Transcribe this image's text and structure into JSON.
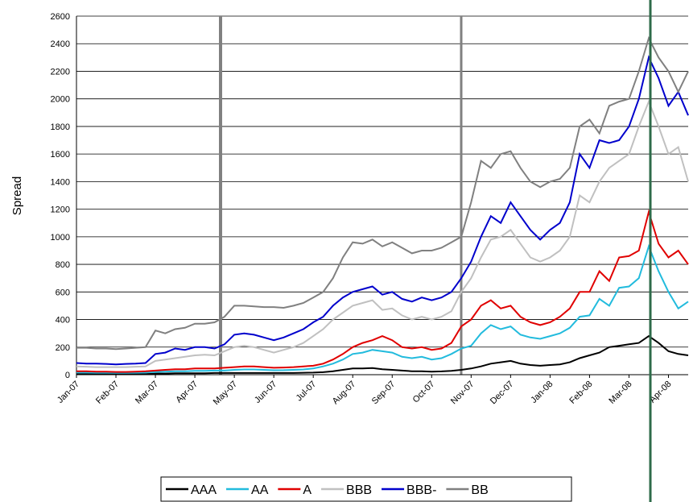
{
  "chart_data": {
    "type": "line",
    "ylabel": "Spread",
    "categories": [
      "Jan-07",
      null,
      null,
      null,
      "Feb-07",
      null,
      null,
      null,
      "Mar-07",
      null,
      null,
      null,
      "Apr-07",
      null,
      null,
      null,
      "May-07",
      null,
      null,
      null,
      "Jun-07",
      null,
      null,
      null,
      "Jul-07",
      null,
      null,
      null,
      "Aug-07",
      null,
      null,
      null,
      "Sep-07",
      null,
      null,
      null,
      "Oct-07",
      null,
      null,
      null,
      "Nov-07",
      null,
      null,
      null,
      "Dec-07",
      null,
      null,
      null,
      "Jan-08",
      null,
      null,
      null,
      "Feb-08",
      null,
      null,
      null,
      "Mar-08",
      null,
      null,
      null,
      "Apr-08",
      null,
      null
    ],
    "series": [
      {
        "name": "AAA",
        "color": "#000000",
        "values": [
          5,
          5,
          5,
          5,
          5,
          5,
          5,
          5,
          8,
          8,
          10,
          10,
          10,
          10,
          12,
          12,
          12,
          12,
          12,
          12,
          12,
          12,
          12,
          14,
          15,
          18,
          25,
          35,
          45,
          45,
          48,
          40,
          35,
          30,
          25,
          25,
          22,
          24,
          28,
          35,
          45,
          60,
          80,
          90,
          100,
          80,
          70,
          65,
          70,
          75,
          90,
          120,
          140,
          160,
          200,
          210,
          220,
          230,
          280,
          230,
          170,
          150,
          140
        ]
      },
      {
        "name": "AA",
        "color": "#22bbdd",
        "values": [
          15,
          15,
          14,
          14,
          13,
          13,
          14,
          15,
          20,
          22,
          25,
          25,
          28,
          28,
          30,
          30,
          35,
          38,
          38,
          35,
          32,
          33,
          35,
          38,
          45,
          60,
          80,
          110,
          150,
          160,
          180,
          170,
          160,
          130,
          120,
          130,
          110,
          120,
          150,
          190,
          210,
          300,
          360,
          330,
          350,
          290,
          270,
          260,
          280,
          300,
          340,
          420,
          430,
          550,
          500,
          630,
          640,
          700,
          930,
          750,
          600,
          480,
          530
        ]
      },
      {
        "name": "A",
        "color": "#e00000",
        "values": [
          25,
          25,
          22,
          22,
          20,
          20,
          22,
          25,
          30,
          35,
          40,
          40,
          45,
          45,
          45,
          50,
          55,
          60,
          60,
          55,
          50,
          52,
          55,
          60,
          65,
          80,
          110,
          150,
          200,
          230,
          250,
          280,
          250,
          200,
          190,
          200,
          180,
          190,
          230,
          350,
          400,
          500,
          540,
          480,
          500,
          420,
          380,
          360,
          380,
          420,
          480,
          600,
          600,
          750,
          680,
          850,
          860,
          900,
          1180,
          950,
          850,
          900,
          800
        ]
      },
      {
        "name": "BBB",
        "color": "#c0c0c0",
        "values": [
          60,
          58,
          55,
          55,
          55,
          55,
          58,
          60,
          100,
          110,
          120,
          130,
          140,
          145,
          140,
          170,
          200,
          210,
          200,
          180,
          160,
          180,
          200,
          230,
          280,
          330,
          400,
          450,
          500,
          520,
          540,
          470,
          480,
          430,
          400,
          420,
          400,
          420,
          460,
          600,
          700,
          850,
          980,
          1000,
          1050,
          950,
          850,
          820,
          850,
          900,
          1000,
          1300,
          1250,
          1400,
          1500,
          1550,
          1600,
          1800,
          1980,
          1800,
          1600,
          1650,
          1400
        ]
      },
      {
        "name": "BBB-",
        "color": "#0000cc",
        "values": [
          85,
          80,
          80,
          78,
          75,
          78,
          80,
          85,
          150,
          160,
          190,
          180,
          200,
          200,
          190,
          220,
          290,
          300,
          290,
          270,
          250,
          270,
          300,
          330,
          380,
          420,
          500,
          560,
          600,
          620,
          640,
          580,
          600,
          550,
          530,
          560,
          540,
          560,
          600,
          700,
          820,
          1000,
          1150,
          1100,
          1250,
          1150,
          1050,
          980,
          1050,
          1100,
          1250,
          1600,
          1500,
          1700,
          1680,
          1700,
          1800,
          2000,
          2300,
          2150,
          1950,
          2050,
          1880
        ]
      },
      {
        "name": "BB",
        "color": "#808080",
        "values": [
          195,
          195,
          190,
          190,
          185,
          190,
          195,
          200,
          320,
          300,
          330,
          340,
          370,
          370,
          380,
          420,
          500,
          500,
          495,
          490,
          490,
          485,
          500,
          520,
          560,
          600,
          700,
          850,
          960,
          950,
          980,
          930,
          960,
          920,
          880,
          900,
          900,
          920,
          960,
          1000,
          1250,
          1550,
          1500,
          1600,
          1620,
          1500,
          1400,
          1360,
          1400,
          1420,
          1500,
          1800,
          1850,
          1750,
          1950,
          1980,
          2000,
          2200,
          2440,
          2300,
          2200,
          2050,
          2200
        ]
      }
    ],
    "ylim": [
      0,
      2600
    ],
    "yticks": [
      0,
      200,
      400,
      600,
      800,
      1000,
      1200,
      1400,
      1600,
      1800,
      2000,
      2200,
      2400,
      2600
    ],
    "grid": true,
    "legend": "bottom"
  }
}
